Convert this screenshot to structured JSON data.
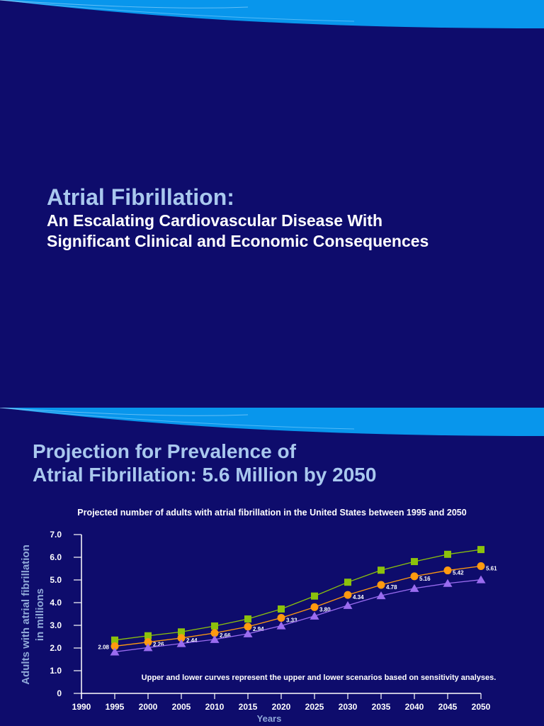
{
  "slide1": {
    "title": "Atrial Fibrillation:",
    "subtitle_line1": "An Escalating Cardiovascular Disease With",
    "subtitle_line2": "Significant Clinical and Economic Consequences"
  },
  "slide2": {
    "title_line1": "Projection for Prevalence of",
    "title_line2": "Atrial Fibrillation: 5.6 Million by 2050"
  },
  "colors": {
    "background": "#0e0c6c",
    "title": "#a9c8ee",
    "upper": "#8cc20c",
    "mid": "#ff9a10",
    "lower": "#9a6cf0"
  },
  "chart_data": {
    "type": "line",
    "title": "Projected number of adults with atrial fibrillation in the United States between 1995 and 2050",
    "xlabel": "Years",
    "ylabel_line1": "Adults with atrial fibrillation",
    "ylabel_line2": "in millions",
    "xlim": [
      1990,
      2050
    ],
    "ylim": [
      0,
      7
    ],
    "x_ticks": [
      "1990",
      "1995",
      "2000",
      "2005",
      "2010",
      "2015",
      "2020",
      "2025",
      "2030",
      "2035",
      "2040",
      "2045",
      "2050"
    ],
    "y_ticks": [
      "0",
      "1.0",
      "2.0",
      "3.0",
      "4.0",
      "5.0",
      "6.0",
      "7.0"
    ],
    "x": [
      1995,
      2000,
      2005,
      2010,
      2015,
      2020,
      2025,
      2030,
      2035,
      2040,
      2045,
      2050
    ],
    "series": [
      {
        "marker": "square",
        "color": "#8cc20c",
        "values": [
          2.35,
          2.54,
          2.71,
          2.97,
          3.28,
          3.72,
          4.29,
          4.9,
          5.43,
          5.81,
          6.13,
          6.34
        ]
      },
      {
        "marker": "circle",
        "color": "#ff9a10",
        "values": [
          2.08,
          2.26,
          2.44,
          2.66,
          2.94,
          3.33,
          3.8,
          4.34,
          4.78,
          5.16,
          5.42,
          5.61
        ],
        "labels": [
          "2.08",
          "2.26",
          "2.44",
          "2.66",
          "2.94",
          "3.33",
          "3.80",
          "4.34",
          "4.78",
          "5.16",
          "5.42",
          "5.61"
        ]
      },
      {
        "marker": "triangle",
        "color": "#9a6cf0",
        "values": [
          1.83,
          2.02,
          2.2,
          2.38,
          2.63,
          2.98,
          3.41,
          3.88,
          4.31,
          4.63,
          4.85,
          5.01
        ]
      }
    ],
    "annotation": "Upper and lower curves represent the upper and lower scenarios based on sensitivity analyses.",
    "grid": false
  }
}
